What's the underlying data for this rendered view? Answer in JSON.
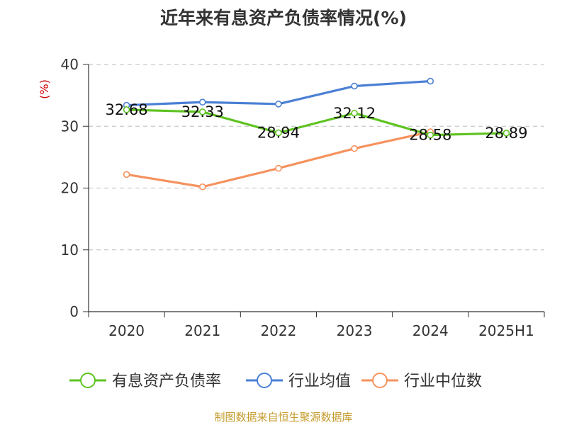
{
  "title": "近年来有息资产负债率情况(%)",
  "source": "制图数据来自恒生聚源数据库",
  "colors": {
    "title": "#333333",
    "axis": "#333333",
    "grid": "#bbbbbb",
    "ylabel": "#cc0000",
    "source": "#c49a2a"
  },
  "chart_data": {
    "type": "line",
    "title": "近年来有息资产负债率情况(%)",
    "ylabel": "(%)",
    "xlabel": "",
    "categories": [
      "2020",
      "2021",
      "2022",
      "2023",
      "2024",
      "2025H1"
    ],
    "ylim": [
      0,
      40
    ],
    "yticks": [
      0,
      10,
      20,
      30,
      40
    ],
    "grid": true,
    "legend_position": "bottom",
    "series": [
      {
        "name": "有息资产负债率",
        "color": "#5ec321",
        "values": [
          32.68,
          32.33,
          28.94,
          32.12,
          28.58,
          28.89
        ],
        "labels": [
          "32.68",
          "32.33",
          "28.94",
          "32.12",
          "28.58",
          "28.89"
        ]
      },
      {
        "name": "行业均值",
        "color": "#4a7fd4",
        "values": [
          33.4,
          33.9,
          33.6,
          36.5,
          37.3,
          null
        ],
        "labels": []
      },
      {
        "name": "行业中位数",
        "color": "#f5925e",
        "values": [
          22.2,
          20.2,
          23.2,
          26.4,
          29.1,
          null
        ],
        "labels": []
      }
    ]
  }
}
